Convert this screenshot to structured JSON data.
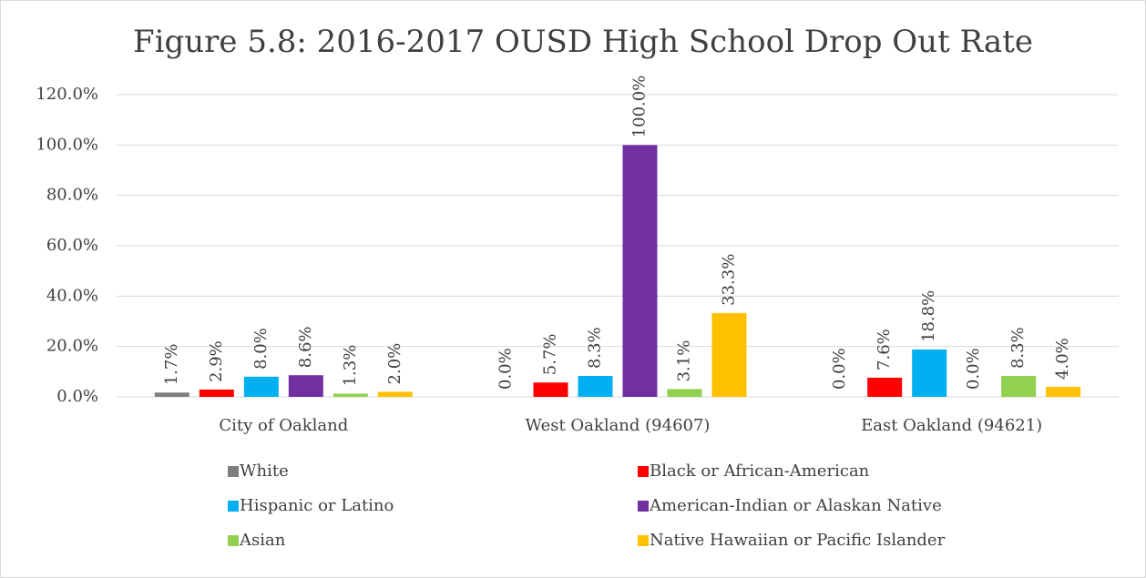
{
  "chart_data": {
    "type": "bar",
    "title": "Figure 5.8: 2016-2017 OUSD High School Drop Out Rate",
    "categories": [
      "City of Oakland",
      "West Oakland (94607)",
      "East Oakland (94621)"
    ],
    "series": [
      {
        "name": "White",
        "color": "#7f7f7f",
        "values": [
          1.7,
          0.0,
          0.0
        ],
        "value_labels": [
          "1.7%",
          "0.0%",
          "0.0%"
        ]
      },
      {
        "name": "Black or African-American",
        "color": "#ff0000",
        "values": [
          2.9,
          5.7,
          7.6
        ],
        "value_labels": [
          "2.9%",
          "5.7%",
          "7.6%"
        ]
      },
      {
        "name": "Hispanic or Latino",
        "color": "#00b0f0",
        "values": [
          8.0,
          8.3,
          18.8
        ],
        "value_labels": [
          "8.0%",
          "8.3%",
          "18.8%"
        ]
      },
      {
        "name": "American-Indian or Alaskan Native",
        "color": "#7030a0",
        "values": [
          8.6,
          100.0,
          0.0
        ],
        "value_labels": [
          "8.6%",
          "100.0%",
          "0.0%"
        ]
      },
      {
        "name": "Asian",
        "color": "#92d050",
        "values": [
          1.3,
          3.1,
          8.3
        ],
        "value_labels": [
          "1.3%",
          "3.1%",
          "8.3%"
        ]
      },
      {
        "name": "Native Hawaiian or Pacific Islander",
        "color": "#ffc000",
        "values": [
          2.0,
          33.3,
          4.0
        ],
        "value_labels": [
          "2.0%",
          "33.3%",
          "4.0%"
        ]
      }
    ],
    "ylim": [
      0,
      120
    ],
    "yticks": [
      {
        "value": 0,
        "label": "0.0%"
      },
      {
        "value": 20,
        "label": "20.0%"
      },
      {
        "value": 40,
        "label": "40.0%"
      },
      {
        "value": 60,
        "label": "60.0%"
      },
      {
        "value": 80,
        "label": "80.0%"
      },
      {
        "value": 100,
        "label": "100.0%"
      },
      {
        "value": 120,
        "label": "120.0%"
      }
    ],
    "grid": true,
    "legend": "bottom"
  }
}
